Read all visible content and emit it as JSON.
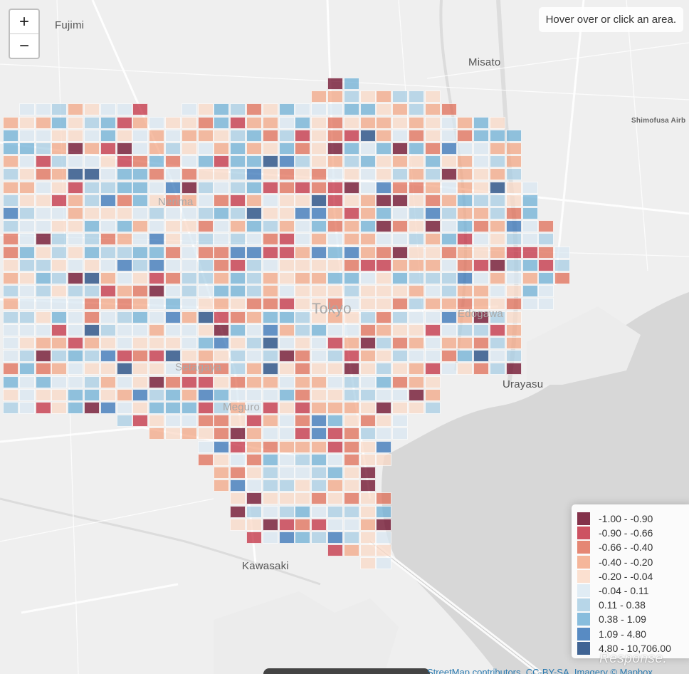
{
  "map": {
    "info_text": "Hover over or click an area.",
    "zoom_in_label": "+",
    "zoom_out_label": "−",
    "places": {
      "fujimi": "Fujimi",
      "misato": "Misato",
      "shimofusa": "Shimofusa Airb",
      "nerima": "Nerima",
      "tokyo": "Tokyo",
      "edogawa": "Edogawa",
      "setagaya": "Setagaya",
      "meguro": "Meguro",
      "urayasu": "Urayasu",
      "kawasaki": "Kawasaki"
    },
    "watermark": "Response.",
    "attribution": "StreetMap contributors, CC-BY-SA, Imagery © Mapbox"
  },
  "legend": {
    "items": [
      {
        "label": "-1.00 - -0.90",
        "color": "#67001f"
      },
      {
        "label": "-0.90 - -0.66",
        "color": "#c2283c"
      },
      {
        "label": "-0.66 - -0.40",
        "color": "#e06a52"
      },
      {
        "label": "-0.40 - -0.20",
        "color": "#f4a582"
      },
      {
        "label": "-0.20 - -0.04",
        "color": "#fbd9c6"
      },
      {
        "label": "-0.04 - 0.11",
        "color": "#d9e8f2"
      },
      {
        "label": "0.11 - 0.38",
        "color": "#a6cde4"
      },
      {
        "label": "0.38 - 1.09",
        "color": "#6baed6"
      },
      {
        "label": "1.09 - 4.80",
        "color": "#2f6fb5"
      },
      {
        "label": "4.80 - 10,706.00",
        "color": "#123e7a"
      }
    ]
  }
}
